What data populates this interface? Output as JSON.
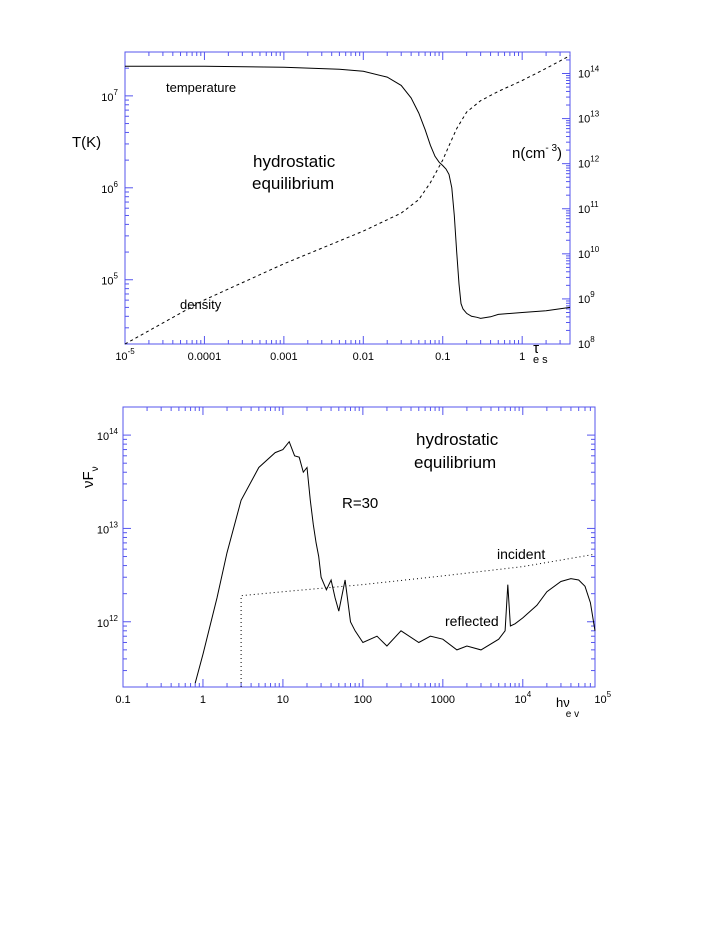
{
  "chart_data": [
    {
      "type": "line",
      "title": "hydrostatic equilibrium",
      "xscale": "log",
      "xlim": [
        1e-05,
        4
      ],
      "ylim_left": [
        20000,
        30000000
      ],
      "ylim_right": [
        100000000,
        300000000000000
      ],
      "x_ticks": [
        {
          "value": 1e-05,
          "base": "10",
          "exp": "-5"
        },
        {
          "value": 0.0001,
          "label": "0.0001"
        },
        {
          "value": 0.001,
          "label": "0.001"
        },
        {
          "value": 0.01,
          "label": "0.01"
        },
        {
          "value": 0.1,
          "label": "0.1"
        },
        {
          "value": 1,
          "label": "1"
        }
      ],
      "y_left_ticks": [
        {
          "value": 100000,
          "base": "10",
          "exp": "5"
        },
        {
          "value": 1000000,
          "base": "10",
          "exp": "6"
        },
        {
          "value": 10000000,
          "base": "10",
          "exp": "7"
        }
      ],
      "y_right_ticks": [
        {
          "value": 100000000,
          "base": "10",
          "exp": "8"
        },
        {
          "value": 1000000000,
          "base": "10",
          "exp": "9"
        },
        {
          "value": 10000000000,
          "base": "10",
          "exp": "10"
        },
        {
          "value": 100000000000,
          "base": "10",
          "exp": "11"
        },
        {
          "value": 1000000000000,
          "base": "10",
          "exp": "12"
        },
        {
          "value": 10000000000000,
          "base": "10",
          "exp": "13"
        },
        {
          "value": 100000000000000,
          "base": "10",
          "exp": "14"
        }
      ],
      "xlabel": {
        "main": "τ",
        "sub": "e s"
      },
      "ylabel_left": "T(K)",
      "ylabel_right": {
        "main": "n(cm",
        "sup": "- 3",
        "close": ")"
      },
      "annotations": {
        "temperature": "temperature",
        "density": "density",
        "title_line1": "hydrostatic",
        "title_line2": "equilibrium"
      },
      "series": [
        {
          "name": "temperature",
          "axis": "left",
          "style": "solid",
          "x": [
            1e-05,
            0.0001,
            0.001,
            0.005,
            0.01,
            0.02,
            0.03,
            0.04,
            0.05,
            0.06,
            0.07,
            0.08,
            0.09,
            0.1,
            0.11,
            0.12,
            0.13,
            0.14,
            0.15,
            0.16,
            0.17,
            0.18,
            0.2,
            0.23,
            0.27,
            0.3,
            0.4,
            0.5,
            1,
            2,
            4
          ],
          "y": [
            21000000,
            21000000,
            20500000,
            19500000,
            18500000,
            16000000,
            13000000,
            9500000,
            6500000,
            4300000,
            2900000,
            2200000,
            1900000,
            1750000,
            1600000,
            1400000,
            1000000,
            500000,
            200000,
            90000,
            55000,
            48000,
            43000,
            40000,
            39000,
            38000,
            39500,
            42000,
            44000,
            46000,
            50000
          ]
        },
        {
          "name": "density",
          "axis": "right",
          "style": "dashed",
          "x": [
            1e-05,
            0.0001,
            0.001,
            0.01,
            0.03,
            0.05,
            0.07,
            0.1,
            0.12,
            0.15,
            0.2,
            0.3,
            0.5,
            1,
            2,
            4
          ],
          "y": [
            100000000,
            950000000,
            6000000000,
            32000000000,
            80000000000,
            160000000000,
            380000000000,
            1200000000000,
            2500000000000,
            6000000000000,
            14000000000000,
            25000000000000,
            40000000000000,
            70000000000000,
            130000000000000,
            250000000000000
          ]
        }
      ]
    },
    {
      "type": "line",
      "title": "hydrostatic equilibrium",
      "xscale": "log",
      "yscale": "log",
      "xlim": [
        0.1,
        80000
      ],
      "ylim": [
        200000000000,
        200000000000000
      ],
      "x_ticks": [
        {
          "value": 0.1,
          "label": "0.1"
        },
        {
          "value": 1,
          "label": "1"
        },
        {
          "value": 10,
          "label": "10"
        },
        {
          "value": 100,
          "label": "100"
        },
        {
          "value": 1000,
          "label": "1000"
        },
        {
          "value": 10000,
          "base": "10",
          "exp": "4"
        },
        {
          "value": 100000,
          "base": "10",
          "exp": "5"
        }
      ],
      "y_ticks": [
        {
          "value": 1000000000000,
          "base": "10",
          "exp": "12"
        },
        {
          "value": 10000000000000,
          "base": "10",
          "exp": "13"
        },
        {
          "value": 100000000000000,
          "base": "10",
          "exp": "14"
        }
      ],
      "xlabel": {
        "main": "hν",
        "sub": "e v"
      },
      "ylabel": {
        "main": "νF",
        "sub": "ν"
      },
      "annotations": {
        "r_label": "R=30",
        "incident": "incident",
        "reflected": "reflected",
        "title_line1": "hydrostatic",
        "title_line2": "equilibrium"
      },
      "series": [
        {
          "name": "reflected",
          "style": "solid",
          "x": [
            0.8,
            1,
            1.5,
            2,
            3,
            5,
            8,
            10,
            12,
            14,
            16,
            18,
            20,
            22,
            24,
            26,
            28,
            30,
            35,
            40,
            45,
            50,
            60,
            70,
            80,
            100,
            150,
            200,
            300,
            500,
            700,
            1000,
            1500,
            2000,
            3000,
            5000,
            6000,
            6500,
            7000,
            8000,
            10000,
            15000,
            20000,
            30000,
            40000,
            50000,
            60000,
            70000,
            80000
          ],
          "y": [
            220000000000,
            450000000000,
            1800000000000,
            5500000000000,
            20000000000000,
            45000000000000,
            65000000000000,
            70000000000000,
            85000000000000,
            60000000000000,
            58000000000000,
            40000000000000,
            45000000000000,
            20000000000000,
            11000000000000,
            7000000000000,
            5000000000000,
            3000000000000,
            2200000000000,
            2800000000000,
            1800000000000,
            1300000000000,
            2800000000000,
            1000000000000,
            800000000000,
            600000000000,
            700000000000,
            550000000000,
            800000000000,
            600000000000,
            700000000000,
            650000000000,
            500000000000,
            550000000000,
            500000000000,
            650000000000,
            800000000000,
            2500000000000,
            900000000000,
            950000000000,
            1100000000000,
            1500000000000,
            2100000000000,
            2700000000000,
            2900000000000,
            2800000000000,
            2400000000000,
            1600000000000,
            800000000000
          ]
        },
        {
          "name": "incident",
          "style": "dotted",
          "x": [
            3,
            3,
            10,
            100,
            1000,
            10000,
            80000
          ],
          "y": [
            200000000000,
            1900000000000,
            2100000000000,
            2500000000000,
            3100000000000,
            3900000000000,
            5300000000000
          ]
        }
      ]
    }
  ]
}
